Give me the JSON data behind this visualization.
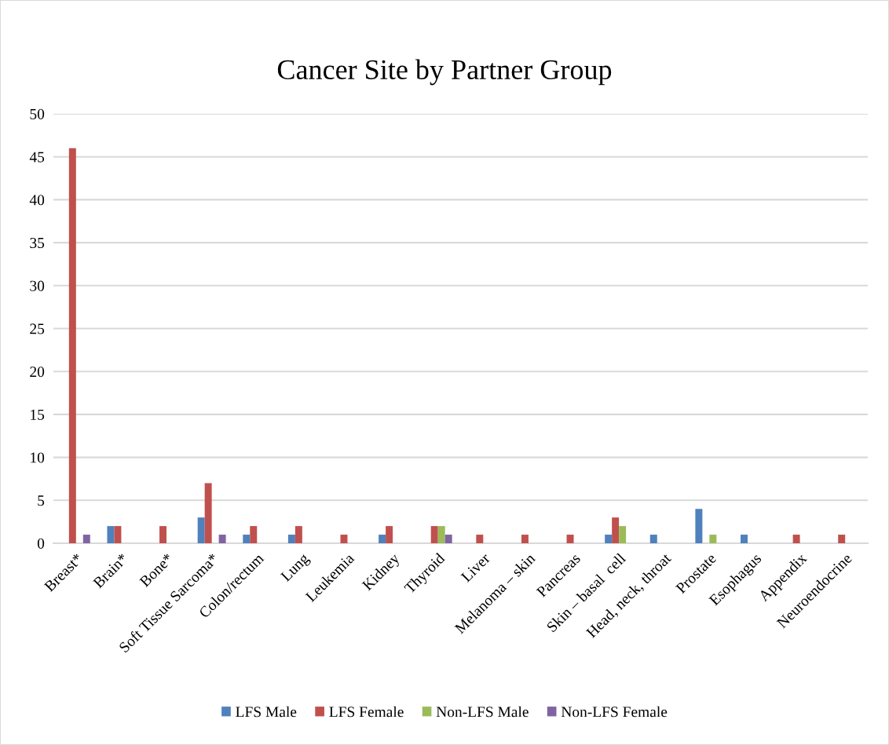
{
  "chart_data": {
    "type": "bar",
    "title": "Cancer Site by Partner Group",
    "categories": [
      "Breast*",
      "Brain*",
      "Bone*",
      "Soft Tissue Sarcoma*",
      "Colon/rectum",
      "Lung",
      "Leukemia",
      "Kidney",
      "Thyroid",
      "Liver",
      "Melanoma – skin",
      "Pancreas",
      "Skin – basal  cell",
      "Head, neck, throat",
      "Prostate",
      "Esophagus",
      "Appendix",
      "Neuroendocrine"
    ],
    "series": [
      {
        "name": "LFS Male",
        "color": "#4f81bd",
        "values": [
          null,
          2,
          null,
          3,
          1,
          1,
          null,
          1,
          null,
          null,
          null,
          null,
          1,
          1,
          4,
          1,
          null,
          null
        ]
      },
      {
        "name": "LFS Female",
        "color": "#c0504d",
        "values": [
          46,
          2,
          2,
          7,
          2,
          2,
          1,
          2,
          2,
          1,
          1,
          1,
          3,
          null,
          null,
          null,
          1,
          1
        ]
      },
      {
        "name": "Non-LFS Male",
        "color": "#9bbb59",
        "values": [
          null,
          null,
          null,
          null,
          null,
          null,
          null,
          null,
          2,
          null,
          null,
          null,
          2,
          null,
          1,
          null,
          null,
          null
        ]
      },
      {
        "name": "Non-LFS Female",
        "color": "#8064a2",
        "values": [
          1,
          null,
          null,
          1,
          null,
          null,
          null,
          null,
          1,
          null,
          null,
          null,
          null,
          null,
          null,
          null,
          null,
          null
        ]
      }
    ],
    "ylim": [
      0,
      50
    ],
    "yticks": [
      0,
      5,
      10,
      15,
      20,
      25,
      30,
      35,
      40,
      45,
      50
    ],
    "grid": "y",
    "legend": "bottom"
  }
}
